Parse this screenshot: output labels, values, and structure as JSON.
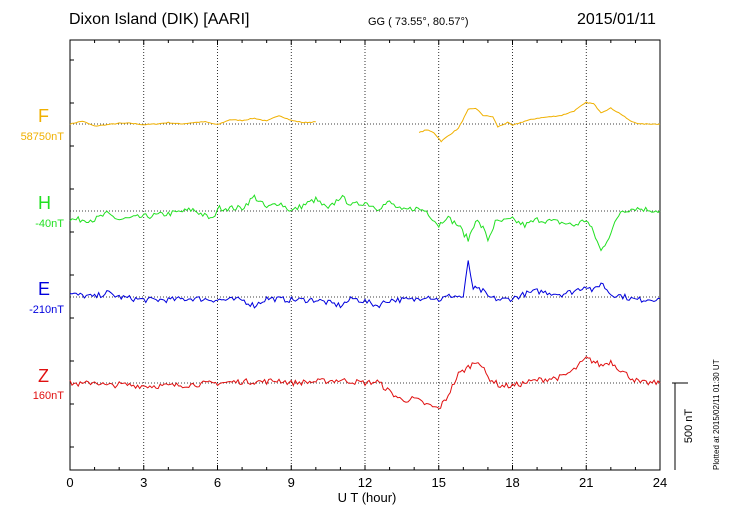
{
  "header": {
    "title": "Dixon Island (DIK)  [AARI]",
    "coords": "GG ( 73.55°,  80.57°)",
    "date": "2015/01/11"
  },
  "footer": {
    "plotted": "Plotted at 2015/02/11 01:30 UT"
  },
  "chart_data": {
    "type": "line",
    "xlabel": "U T (hour)",
    "xlim": [
      0,
      24
    ],
    "xticks": [
      "0",
      "3",
      "6",
      "9",
      "12",
      "15",
      "18",
      "21",
      "24"
    ],
    "scale_bar_label": "500 nT",
    "series": [
      {
        "name": "F",
        "baseline": "58750nT",
        "color": "#f0b000",
        "points": [
          [
            0,
            0
          ],
          [
            0.5,
            20
          ],
          [
            1,
            -15
          ],
          [
            1.5,
            -5
          ],
          [
            2,
            5
          ],
          [
            2.5,
            5
          ],
          [
            3,
            -5
          ],
          [
            3.5,
            0
          ],
          [
            4,
            10
          ],
          [
            4.5,
            0
          ],
          [
            5,
            10
          ],
          [
            5.5,
            15
          ],
          [
            6,
            -5
          ],
          [
            6.5,
            30
          ],
          [
            7,
            25
          ],
          [
            7.5,
            40
          ],
          [
            8,
            20
          ],
          [
            8.5,
            60
          ],
          [
            9,
            25
          ],
          [
            9.5,
            10
          ],
          [
            10,
            15
          ],
          [
            null,
            null
          ],
          [
            14.2,
            -60
          ],
          [
            14.5,
            -40
          ],
          [
            14.8,
            -60
          ],
          [
            15.1,
            -120
          ],
          [
            15.4,
            -80
          ],
          [
            15.8,
            -30
          ],
          [
            16.2,
            100
          ],
          [
            16.5,
            110
          ],
          [
            16.8,
            60
          ],
          [
            17.2,
            50
          ],
          [
            17.4,
            -20
          ],
          [
            17.8,
            10
          ],
          [
            18,
            -10
          ],
          [
            18.5,
            20
          ],
          [
            19,
            40
          ],
          [
            19.5,
            50
          ],
          [
            20,
            60
          ],
          [
            20.5,
            90
          ],
          [
            21,
            150
          ],
          [
            21.3,
            140
          ],
          [
            21.6,
            80
          ],
          [
            22,
            110
          ],
          [
            22.4,
            70
          ],
          [
            22.8,
            20
          ],
          [
            23.2,
            0
          ],
          [
            24,
            0
          ]
        ]
      },
      {
        "name": "H",
        "baseline": "-40nT",
        "color": "#22e022",
        "points": [
          [
            0,
            -60
          ],
          [
            1,
            -60
          ],
          [
            1.5,
            -20
          ],
          [
            2,
            -60
          ],
          [
            3,
            -40
          ],
          [
            4,
            -20
          ],
          [
            5,
            10
          ],
          [
            5.8,
            -60
          ],
          [
            6,
            20
          ],
          [
            7,
            20
          ],
          [
            7.5,
            100
          ],
          [
            8,
            20
          ],
          [
            8.5,
            60
          ],
          [
            9,
            0
          ],
          [
            10,
            80
          ],
          [
            10.5,
            10
          ],
          [
            11,
            100
          ],
          [
            11.5,
            40
          ],
          [
            12,
            60
          ],
          [
            12.5,
            20
          ],
          [
            13,
            60
          ],
          [
            13.5,
            0
          ],
          [
            14,
            20
          ],
          [
            14.5,
            0
          ],
          [
            15,
            -100
          ],
          [
            15.3,
            -40
          ],
          [
            15.8,
            -100
          ],
          [
            16.2,
            -200
          ],
          [
            16.5,
            -60
          ],
          [
            16.8,
            -120
          ],
          [
            17,
            -200
          ],
          [
            17.3,
            -80
          ],
          [
            18,
            -60
          ],
          [
            18.5,
            -100
          ],
          [
            19,
            -60
          ],
          [
            20,
            -80
          ],
          [
            20.5,
            -100
          ],
          [
            21,
            -60
          ],
          [
            21.3,
            -150
          ],
          [
            21.6,
            -280
          ],
          [
            22,
            -150
          ],
          [
            22.4,
            0
          ],
          [
            23,
            20
          ],
          [
            24,
            0
          ]
        ]
      },
      {
        "name": "E",
        "baseline": "-210nT",
        "color": "#0000dd",
        "points": [
          [
            0,
            20
          ],
          [
            1,
            0
          ],
          [
            1.5,
            30
          ],
          [
            2,
            0
          ],
          [
            3,
            -20
          ],
          [
            4,
            -20
          ],
          [
            5,
            -10
          ],
          [
            6,
            -20
          ],
          [
            7,
            -20
          ],
          [
            7.5,
            -60
          ],
          [
            8,
            -10
          ],
          [
            9,
            -20
          ],
          [
            10,
            -20
          ],
          [
            11,
            -60
          ],
          [
            11.5,
            -10
          ],
          [
            12,
            -30
          ],
          [
            12.5,
            -60
          ],
          [
            13,
            -20
          ],
          [
            14,
            -20
          ],
          [
            14.5,
            10
          ],
          [
            15,
            -20
          ],
          [
            15.5,
            10
          ],
          [
            16,
            0
          ],
          [
            16.2,
            240
          ],
          [
            16.4,
            60
          ],
          [
            16.8,
            40
          ],
          [
            17,
            0
          ],
          [
            17.5,
            -20
          ],
          [
            18,
            -10
          ],
          [
            18.5,
            20
          ],
          [
            19,
            40
          ],
          [
            20,
            20
          ],
          [
            20.5,
            40
          ],
          [
            21,
            80
          ],
          [
            21.3,
            40
          ],
          [
            21.6,
            100
          ],
          [
            22,
            20
          ],
          [
            22.4,
            10
          ],
          [
            23,
            -20
          ],
          [
            24,
            -10
          ]
        ]
      },
      {
        "name": "Z",
        "baseline": "160nT",
        "color": "#e01010",
        "points": [
          [
            0,
            0
          ],
          [
            0.5,
            -10
          ],
          [
            1,
            10
          ],
          [
            1.5,
            -20
          ],
          [
            2,
            -10
          ],
          [
            3,
            -20
          ],
          [
            4,
            -20
          ],
          [
            5,
            -10
          ],
          [
            6,
            0
          ],
          [
            7,
            10
          ],
          [
            8,
            10
          ],
          [
            8.5,
            20
          ],
          [
            9,
            0
          ],
          [
            10,
            10
          ],
          [
            11,
            20
          ],
          [
            12,
            0
          ],
          [
            12.5,
            10
          ],
          [
            13,
            -60
          ],
          [
            13.5,
            -120
          ],
          [
            14,
            -110
          ],
          [
            14.5,
            -150
          ],
          [
            15,
            -180
          ],
          [
            15.3,
            -110
          ],
          [
            15.8,
            60
          ],
          [
            16.2,
            110
          ],
          [
            16.6,
            160
          ],
          [
            17,
            40
          ],
          [
            17.5,
            -20
          ],
          [
            18,
            -20
          ],
          [
            18.5,
            0
          ],
          [
            19,
            20
          ],
          [
            19.5,
            30
          ],
          [
            20,
            40
          ],
          [
            20.5,
            90
          ],
          [
            21,
            170
          ],
          [
            21.3,
            150
          ],
          [
            21.6,
            120
          ],
          [
            22,
            150
          ],
          [
            22.4,
            90
          ],
          [
            22.8,
            40
          ],
          [
            23.2,
            0
          ],
          [
            24,
            0
          ]
        ]
      }
    ]
  }
}
